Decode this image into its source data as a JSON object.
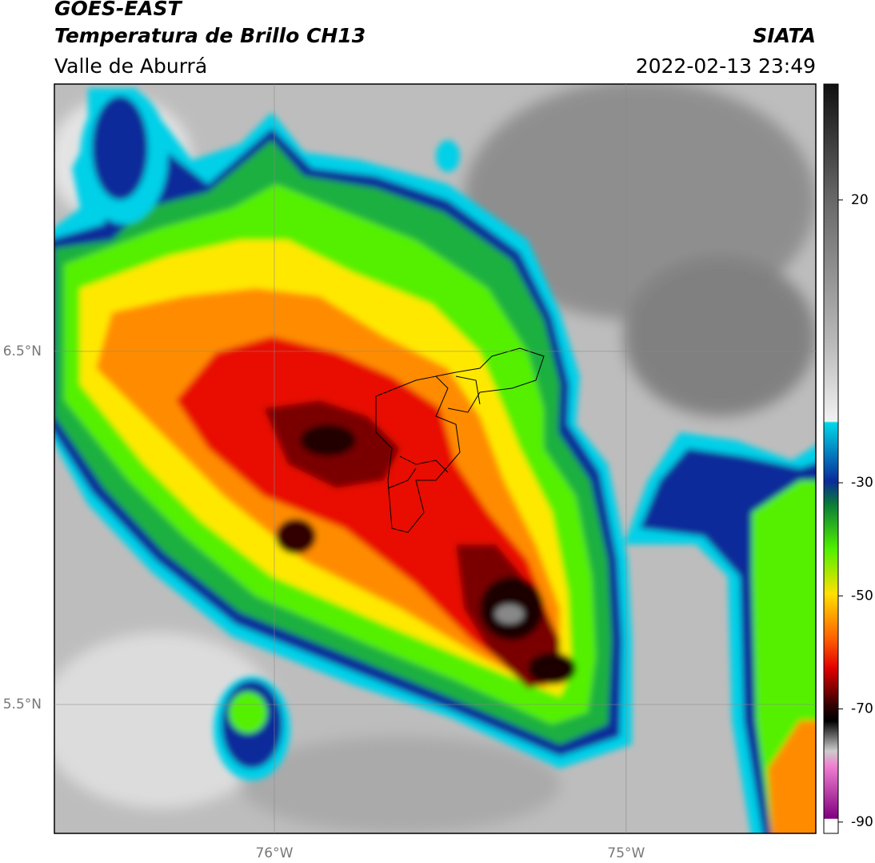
{
  "header": {
    "satellite": "GOES-EAST",
    "product": "Temperatura de Brillo CH13",
    "region": "Valle de Aburrá",
    "source": "SIATA",
    "datetime": "2022-02-13 23:49"
  },
  "map": {
    "xlim": [
      -76.625,
      -74.461
    ],
    "ylim": [
      5.135,
      7.257
    ],
    "xticks": [
      {
        "value": -76,
        "label": "76°W"
      },
      {
        "value": -75,
        "label": "75°W"
      }
    ],
    "yticks": [
      {
        "value": 6.5,
        "label": "6.5°N"
      },
      {
        "value": 5.5,
        "label": "5.5°N"
      }
    ],
    "grid": true,
    "colorbar": {
      "lim": [
        -92,
        40.5
      ],
      "ticks": [
        20,
        -30,
        -50,
        -70,
        -90
      ]
    }
  }
}
